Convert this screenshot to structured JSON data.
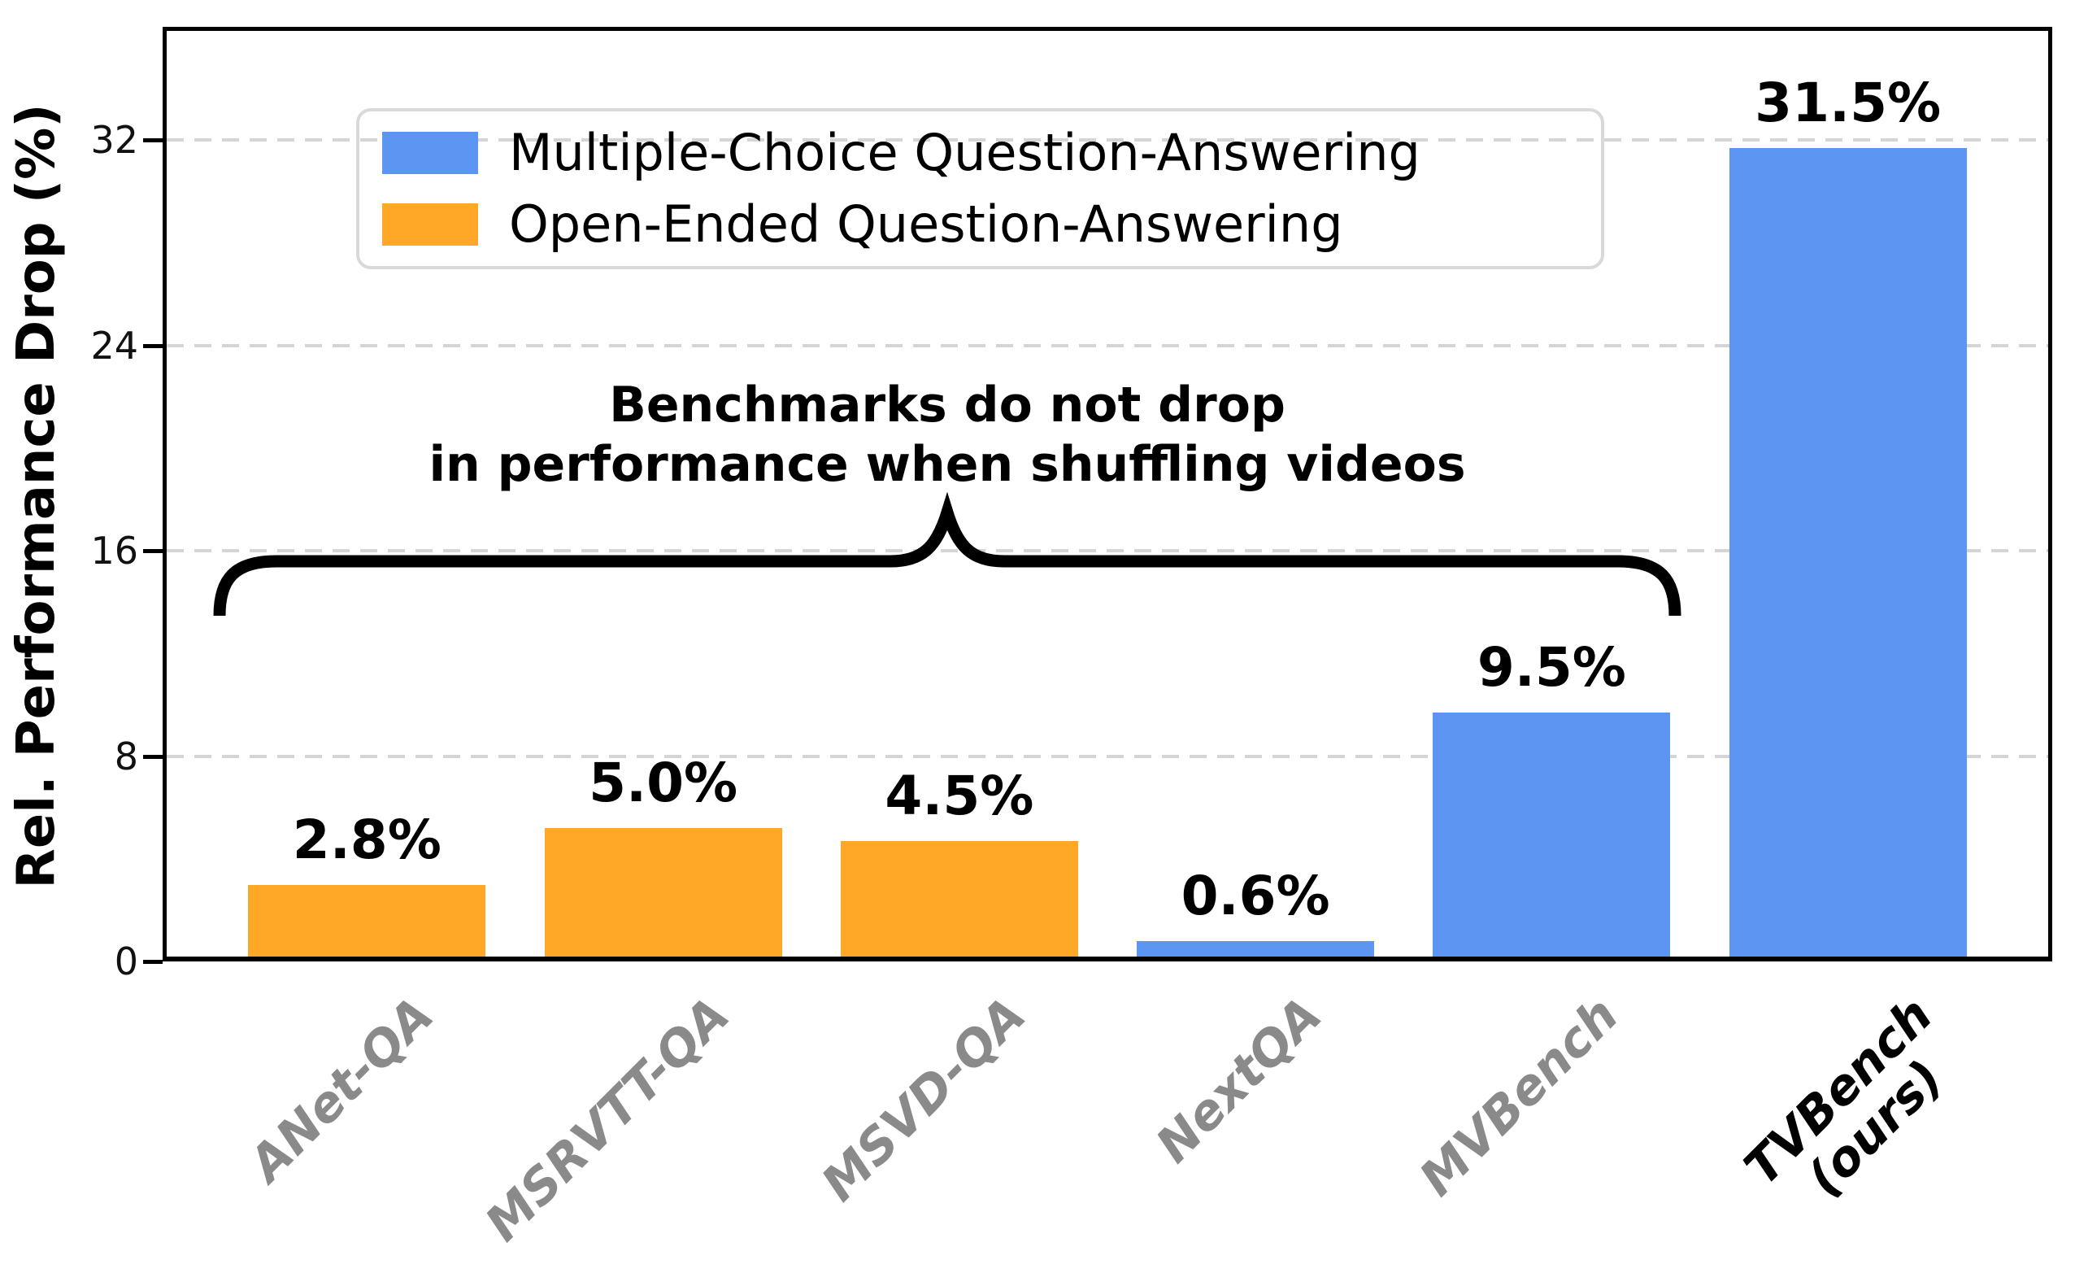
{
  "chart_data": {
    "type": "bar",
    "title": "",
    "ylabel": "Rel. Performance Drop (%)",
    "xlabel": "",
    "ylim": [
      0,
      36.4
    ],
    "yticks": [
      0,
      8,
      16,
      24,
      32
    ],
    "grid": {
      "axis": "y",
      "style": "dashed",
      "color": "#d5d5d5"
    },
    "legend": {
      "position": "upper left",
      "entries": [
        {
          "label": "Multiple-Choice Question-Answering",
          "color": "#5C95F2"
        },
        {
          "label": "Open-Ended Question-Answering",
          "color": "#FFA726"
        }
      ]
    },
    "annotation": {
      "line1": "Benchmarks do not drop",
      "line2": "in performance when shuffling videos",
      "brace_spans": "ANet-QA through MVBench"
    },
    "bars": [
      {
        "category": "ANet-QA",
        "value": 2.8,
        "value_label": "2.8%",
        "series": "Open-Ended Question-Answering",
        "category_color": "#8a8a8a"
      },
      {
        "category": "MSRVTT-QA",
        "value": 5.0,
        "value_label": "5.0%",
        "series": "Open-Ended Question-Answering",
        "category_color": "#8a8a8a"
      },
      {
        "category": "MSVD-QA",
        "value": 4.5,
        "value_label": "4.5%",
        "series": "Open-Ended Question-Answering",
        "category_color": "#8a8a8a"
      },
      {
        "category": "NextQA",
        "value": 0.6,
        "value_label": "0.6%",
        "series": "Multiple-Choice Question-Answering",
        "category_color": "#8a8a8a"
      },
      {
        "category": "MVBench",
        "value": 9.5,
        "value_label": "9.5%",
        "series": "Multiple-Choice Question-Answering",
        "category_color": "#8a8a8a"
      },
      {
        "category": "TVBench",
        "category_line2": "(ours)",
        "value": 31.5,
        "value_label": "31.5%",
        "series": "Multiple-Choice Question-Answering",
        "category_color": "#000000"
      }
    ],
    "colors": {
      "multiple_choice_blue": "#5C95F2",
      "open_ended_orange": "#FFA726",
      "grid": "#d5d5d5",
      "axis": "#000000",
      "category_label_gray": "#8a8a8a",
      "emphasis_black": "#000000"
    }
  }
}
